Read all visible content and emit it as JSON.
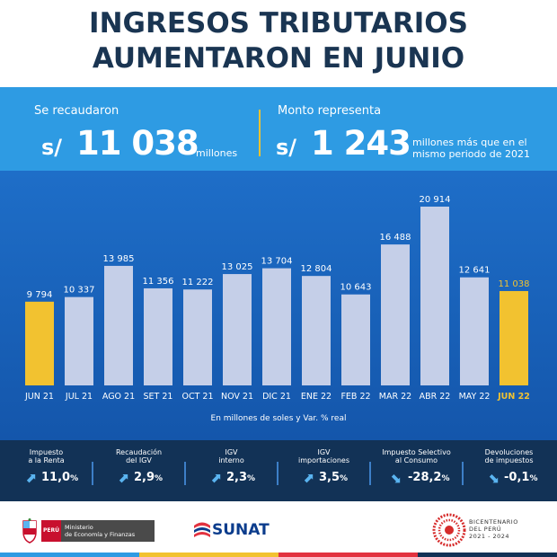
{
  "title": {
    "line1": "INGRESOS TRIBUTARIOS",
    "line2": "AUMENTARON EN JUNIO"
  },
  "stats": {
    "left_label": "Se recaudaron",
    "left_currency": "s/",
    "left_value": "11 038",
    "left_unit": "millones",
    "right_label": "Monto representa",
    "right_currency": "s/",
    "right_value": "1 243",
    "right_unit_line1": "millones más que en el",
    "right_unit_line2": "mismo periodo de 2021"
  },
  "chart_data": {
    "type": "bar",
    "categories": [
      "JUN 21",
      "JUL 21",
      "AGO  21",
      "SET 21",
      "OCT 21",
      "NOV 21",
      "DIC 21",
      "ENE 22",
      "FEB 22",
      "MAR 22",
      "ABR 22",
      "MAY 22",
      "JUN 22"
    ],
    "values": [
      9794,
      10337,
      13985,
      11356,
      11222,
      13025,
      13704,
      12804,
      10643,
      16488,
      20914,
      12641,
      11038
    ],
    "value_labels": [
      "9 794",
      "10 337",
      "13 985",
      "11 356",
      "11 222",
      "13 025",
      "13 704",
      "12 804",
      "10 643",
      "16 488",
      "20 914",
      "12 641",
      "11 038"
    ],
    "highlighted": [
      true,
      false,
      false,
      false,
      false,
      false,
      false,
      false,
      false,
      false,
      false,
      false,
      true
    ],
    "ylim": [
      0,
      21000
    ],
    "note": "En millones de soles y Var. % real",
    "colors": {
      "bar": "#c5cfe8",
      "highlight": "#f2c230",
      "label": "#ffffff",
      "highlight_label": "#f2c230"
    }
  },
  "indicators": [
    {
      "label_line1": "Impuesto",
      "label_line2": "a la Renta",
      "direction": "up",
      "value": "11,0",
      "unit": "%"
    },
    {
      "label_line1": "Recaudación",
      "label_line2": "del IGV",
      "direction": "up",
      "value": "2,9",
      "unit": "%"
    },
    {
      "label_line1": "IGV",
      "label_line2": "interno",
      "direction": "up",
      "value": "2,3",
      "unit": "%"
    },
    {
      "label_line1": "IGV",
      "label_line2": "importaciones",
      "direction": "up",
      "value": "3,5",
      "unit": "%"
    },
    {
      "label_line1": "Impuesto Selectivo",
      "label_line2": "al Consumo",
      "direction": "down",
      "value": "-28,2",
      "unit": "%"
    },
    {
      "label_line1": "Devoluciones",
      "label_line2": "de impuestos",
      "direction": "down",
      "value": "-0,1",
      "unit": "%"
    }
  ],
  "footer": {
    "peru_label": "PERÚ",
    "ministry_line1": "Ministerio",
    "ministry_line2": "de Economía y Finanzas",
    "sunat_label": "SUNAT",
    "bicentenario_line1": "BICENTENARIO",
    "bicentenario_line2": "DEL PERÚ",
    "bicentenario_line3": "2021 - 2024"
  },
  "arrow_icons": {
    "up": "⬈",
    "down": "⬊"
  }
}
